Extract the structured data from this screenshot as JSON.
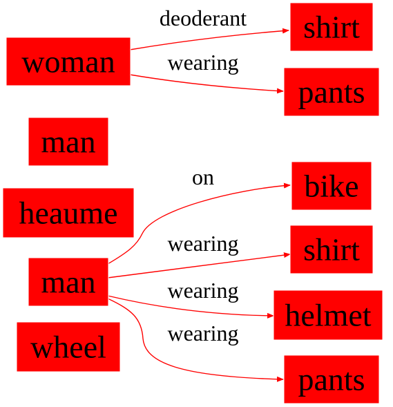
{
  "colors": {
    "node_fill": "#ff0000",
    "edge": "#ff0000",
    "text": "#000000",
    "background": "#ffffff"
  },
  "nodes": {
    "woman": "woman",
    "shirt_1": "shirt",
    "pants_1": "pants",
    "man_1": "man",
    "heaume": "heaume",
    "man_2": "man",
    "bike": "bike",
    "shirt_2": "shirt",
    "helmet": "helmet",
    "wheel": "wheel",
    "pants_2": "pants"
  },
  "edges": {
    "woman_shirt": "deoderant",
    "woman_pants": "wearing",
    "man_bike": "on",
    "man_shirt": "wearing",
    "man_helmet": "wearing",
    "man_pants": "wearing"
  }
}
